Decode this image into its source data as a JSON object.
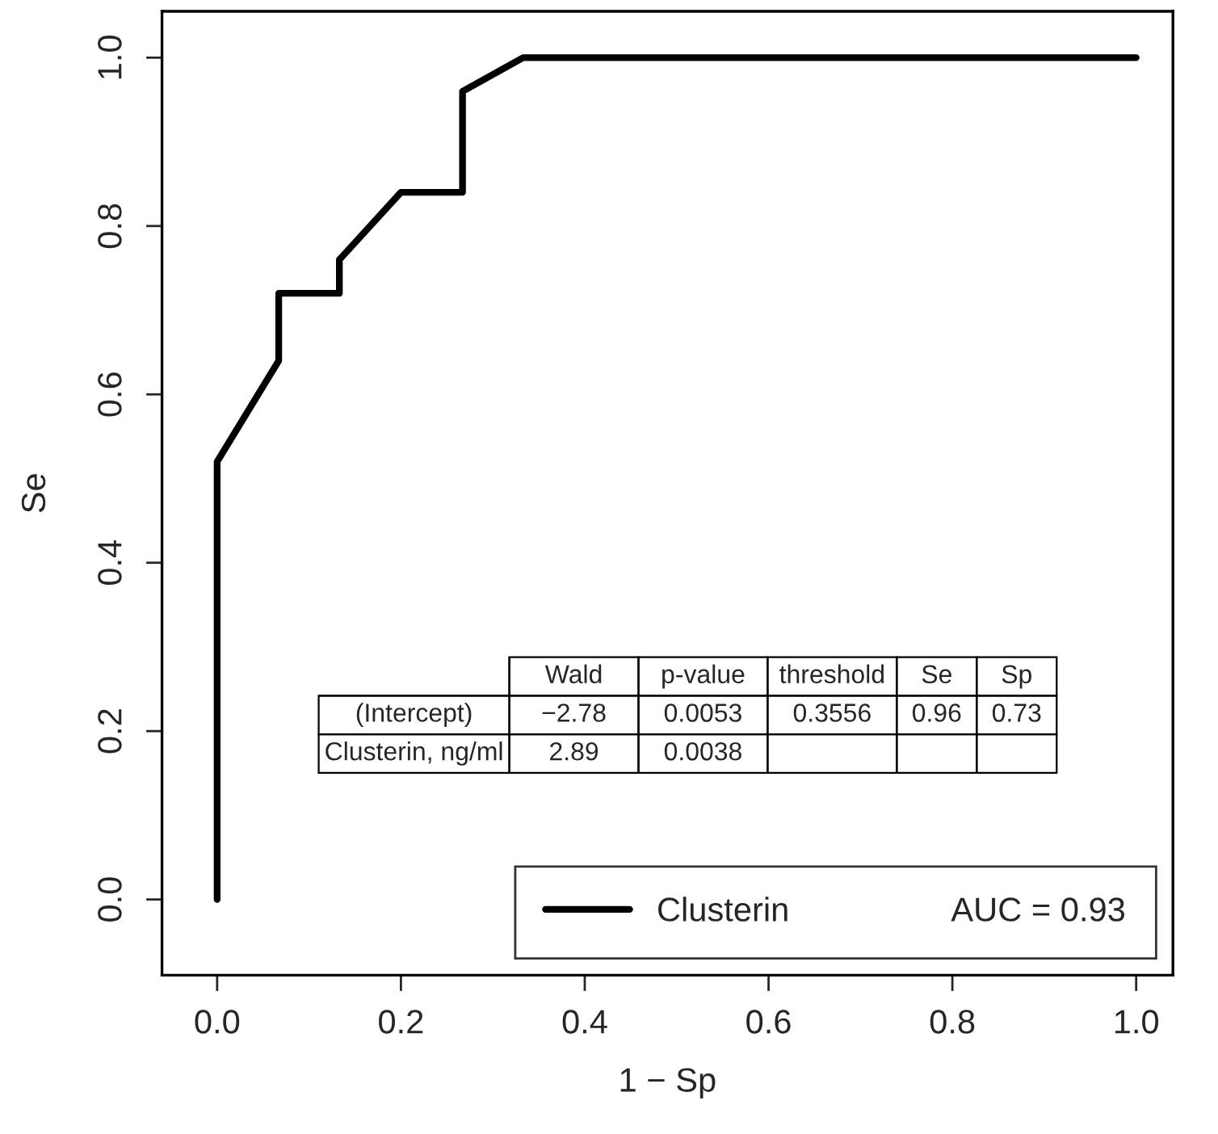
{
  "chart_data": {
    "type": "line",
    "xlabel": "1 − Sp",
    "ylabel": "Se",
    "x": [
      0,
      0,
      0.067,
      0.067,
      0.133,
      0.133,
      0.2,
      0.267,
      0.267,
      0.333,
      1
    ],
    "series": [
      {
        "name": "Clusterin",
        "color": "#000000",
        "values": [
          0,
          0.52,
          0.64,
          0.72,
          0.72,
          0.76,
          0.84,
          0.84,
          0.96,
          1,
          1
        ]
      }
    ],
    "xlim": [
      -0.06,
      1.04
    ],
    "ylim": [
      -0.09,
      1.055
    ],
    "xticks": [
      {
        "value": 0,
        "label": "0.0"
      },
      {
        "value": 0.2,
        "label": "0.2"
      },
      {
        "value": 0.4,
        "label": "0.4"
      },
      {
        "value": 0.6,
        "label": "0.6"
      },
      {
        "value": 0.8,
        "label": "0.8"
      },
      {
        "value": 1,
        "label": "1.0"
      }
    ],
    "yticks": [
      {
        "value": 0,
        "label": "0.0"
      },
      {
        "value": 0.2,
        "label": "0.2"
      },
      {
        "value": 0.4,
        "label": "0.4"
      },
      {
        "value": 0.6,
        "label": "0.6"
      },
      {
        "value": 0.8,
        "label": "0.8"
      },
      {
        "value": 1,
        "label": "1.0"
      }
    ],
    "grid": false,
    "legend": "bottom right",
    "marker": "none",
    "line_style": "solid",
    "annotations": [
      "Wald",
      "p-value",
      "threshold",
      "Se",
      "Sp",
      "(Intercept)",
      "−2.78",
      "0.0053",
      "0.3556",
      "0.96",
      "0.73",
      "Clusterin, ng/ml",
      "2.89",
      "0.0038",
      "AUC = 0.93"
    ]
  }
}
